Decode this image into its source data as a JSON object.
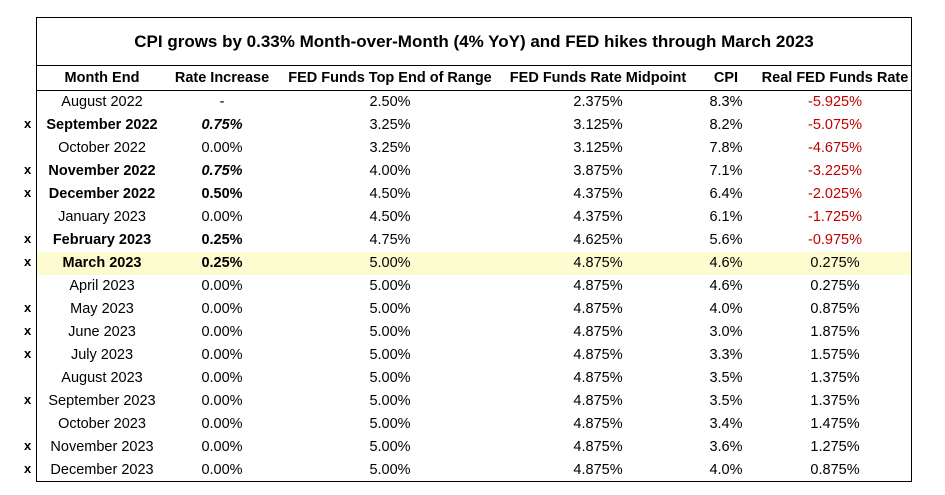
{
  "chart_data": {
    "type": "table",
    "title": "CPI grows by 0.33% Month-over-Month (4% YoY) and FED hikes through March 2023",
    "columns": [
      "Month End",
      "Rate Increase",
      "FED Funds Top End of Range",
      "FED Funds Rate Midpoint",
      "CPI",
      "Real FED Funds Rate"
    ],
    "rows": [
      {
        "marker": "",
        "month": "August 2022",
        "rate": "-",
        "rate_style": "normal",
        "top": "2.50%",
        "mid": "2.375%",
        "cpi": "8.3%",
        "real": "-5.925%",
        "month_bold": false,
        "highlight": false
      },
      {
        "marker": "x",
        "month": "September 2022",
        "rate": "0.75%",
        "rate_style": "bold-italic",
        "top": "3.25%",
        "mid": "3.125%",
        "cpi": "8.2%",
        "real": "-5.075%",
        "month_bold": true,
        "highlight": false
      },
      {
        "marker": "",
        "month": "October 2022",
        "rate": "0.00%",
        "rate_style": "normal",
        "top": "3.25%",
        "mid": "3.125%",
        "cpi": "7.8%",
        "real": "-4.675%",
        "month_bold": false,
        "highlight": false
      },
      {
        "marker": "x",
        "month": "November 2022",
        "rate": "0.75%",
        "rate_style": "bold-italic",
        "top": "4.00%",
        "mid": "3.875%",
        "cpi": "7.1%",
        "real": "-3.225%",
        "month_bold": true,
        "highlight": false
      },
      {
        "marker": "x",
        "month": "December 2022",
        "rate": "0.50%",
        "rate_style": "bold",
        "top": "4.50%",
        "mid": "4.375%",
        "cpi": "6.4%",
        "real": "-2.025%",
        "month_bold": true,
        "highlight": false
      },
      {
        "marker": "",
        "month": "January 2023",
        "rate": "0.00%",
        "rate_style": "normal",
        "top": "4.50%",
        "mid": "4.375%",
        "cpi": "6.1%",
        "real": "-1.725%",
        "month_bold": false,
        "highlight": false
      },
      {
        "marker": "x",
        "month": "February 2023",
        "rate": "0.25%",
        "rate_style": "bold",
        "top": "4.75%",
        "mid": "4.625%",
        "cpi": "5.6%",
        "real": "-0.975%",
        "month_bold": true,
        "highlight": false
      },
      {
        "marker": "x",
        "month": "March 2023",
        "rate": "0.25%",
        "rate_style": "bold",
        "top": "5.00%",
        "mid": "4.875%",
        "cpi": "4.6%",
        "real": "0.275%",
        "month_bold": true,
        "highlight": true
      },
      {
        "marker": "",
        "month": "April 2023",
        "rate": "0.00%",
        "rate_style": "normal",
        "top": "5.00%",
        "mid": "4.875%",
        "cpi": "4.6%",
        "real": "0.275%",
        "month_bold": false,
        "highlight": false
      },
      {
        "marker": "x",
        "month": "May 2023",
        "rate": "0.00%",
        "rate_style": "normal",
        "top": "5.00%",
        "mid": "4.875%",
        "cpi": "4.0%",
        "real": "0.875%",
        "month_bold": false,
        "highlight": false
      },
      {
        "marker": "x",
        "month": "June 2023",
        "rate": "0.00%",
        "rate_style": "normal",
        "top": "5.00%",
        "mid": "4.875%",
        "cpi": "3.0%",
        "real": "1.875%",
        "month_bold": false,
        "highlight": false
      },
      {
        "marker": "x",
        "month": "July 2023",
        "rate": "0.00%",
        "rate_style": "normal",
        "top": "5.00%",
        "mid": "4.875%",
        "cpi": "3.3%",
        "real": "1.575%",
        "month_bold": false,
        "highlight": false
      },
      {
        "marker": "",
        "month": "August 2023",
        "rate": "0.00%",
        "rate_style": "normal",
        "top": "5.00%",
        "mid": "4.875%",
        "cpi": "3.5%",
        "real": "1.375%",
        "month_bold": false,
        "highlight": false
      },
      {
        "marker": "x",
        "month": "September 2023",
        "rate": "0.00%",
        "rate_style": "normal",
        "top": "5.00%",
        "mid": "4.875%",
        "cpi": "3.5%",
        "real": "1.375%",
        "month_bold": false,
        "highlight": false
      },
      {
        "marker": "",
        "month": "October 2023",
        "rate": "0.00%",
        "rate_style": "normal",
        "top": "5.00%",
        "mid": "4.875%",
        "cpi": "3.4%",
        "real": "1.475%",
        "month_bold": false,
        "highlight": false
      },
      {
        "marker": "x",
        "month": "November 2023",
        "rate": "0.00%",
        "rate_style": "normal",
        "top": "5.00%",
        "mid": "4.875%",
        "cpi": "3.6%",
        "real": "1.275%",
        "month_bold": false,
        "highlight": false
      },
      {
        "marker": "x",
        "month": "December 2023",
        "rate": "0.00%",
        "rate_style": "normal",
        "top": "5.00%",
        "mid": "4.875%",
        "cpi": "4.0%",
        "real": "0.875%",
        "month_bold": false,
        "highlight": false
      }
    ],
    "colors": {
      "negative": "#c00000",
      "highlight": "#fdfcd0"
    }
  }
}
